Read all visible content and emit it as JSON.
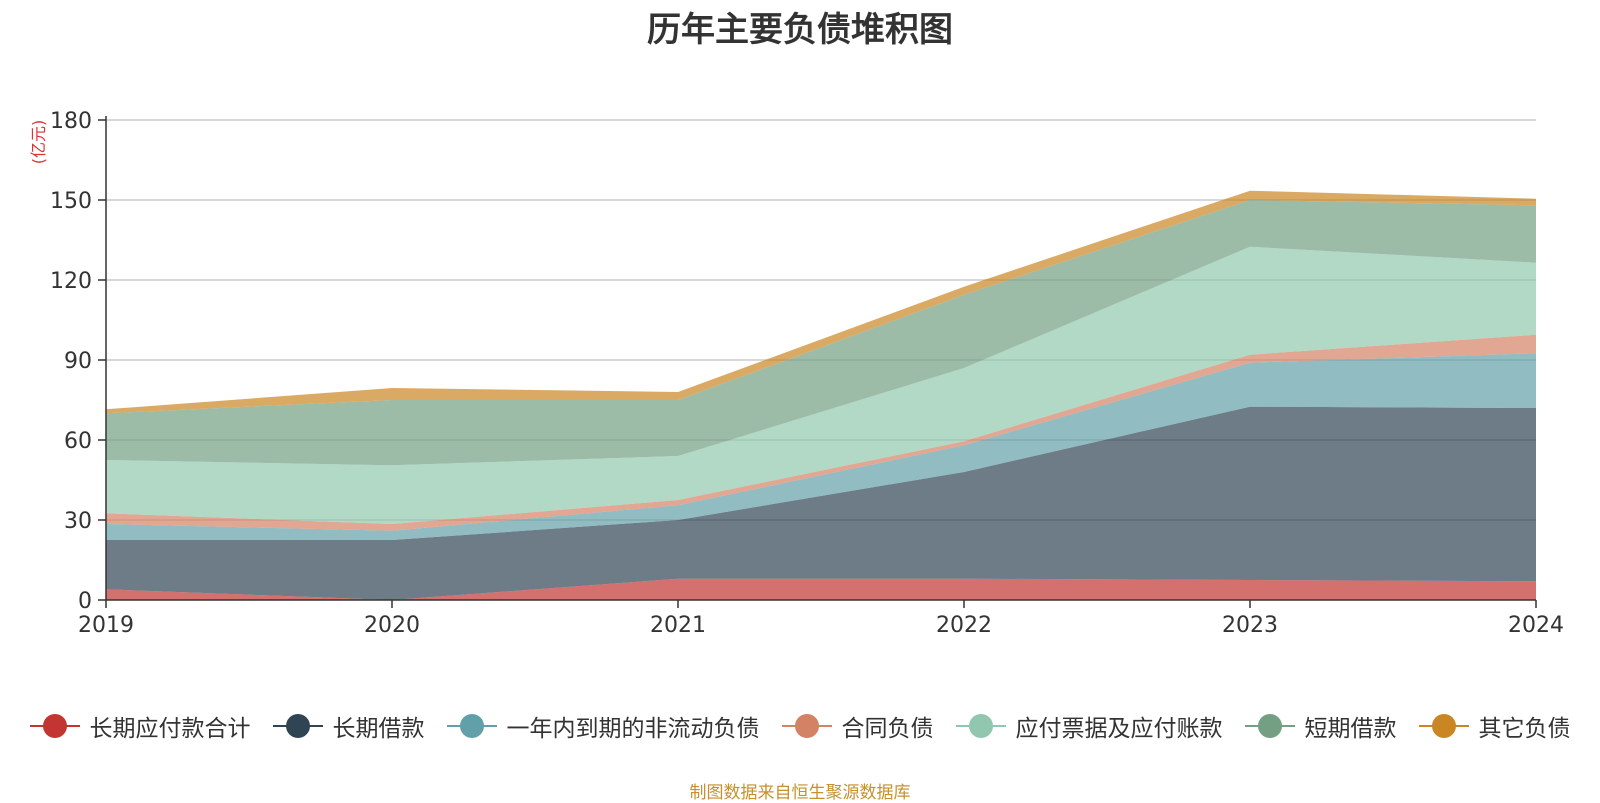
{
  "colors": {
    "title": "#333333",
    "unit": "#e03030",
    "source": "#c8902a",
    "grid": "#cccccc",
    "axis": "#333333"
  },
  "chart_data": {
    "type": "area",
    "stacked": true,
    "title": "历年主要负债堆积图",
    "ylabel": "(亿元)",
    "xlabel": "",
    "x": [
      "2019",
      "2020",
      "2021",
      "2022",
      "2023",
      "2024"
    ],
    "ylim": [
      0,
      180
    ],
    "yticks": [
      0,
      30,
      60,
      90,
      120,
      150,
      180
    ],
    "grid": true,
    "legend_position": "bottom",
    "series": [
      {
        "name": "长期应付款合计",
        "color": "#c23531",
        "values": [
          4,
          0,
          8,
          8,
          7.5,
          7
        ]
      },
      {
        "name": "长期借款",
        "color": "#2f4554",
        "values": [
          18.5,
          22.5,
          22,
          40,
          65,
          65
        ]
      },
      {
        "name": "一年内到期的非流动负债",
        "color": "#61a0a8",
        "values": [
          6,
          3.5,
          5.5,
          10,
          16.5,
          20.5
        ]
      },
      {
        "name": "合同负债",
        "color": "#d48265",
        "values": [
          4,
          2.5,
          2,
          1.5,
          3,
          7
        ]
      },
      {
        "name": "应付票据及应付账款",
        "color": "#91c7ae",
        "values": [
          20,
          22,
          16.5,
          27.5,
          40.5,
          27
        ]
      },
      {
        "name": "短期借款",
        "color": "#749f83",
        "values": [
          17.5,
          24.5,
          21,
          27.5,
          17.5,
          21.5
        ]
      },
      {
        "name": "其它负债",
        "color": "#ca8622",
        "values": [
          1.5,
          4.5,
          3,
          3,
          3.5,
          2.5
        ]
      }
    ]
  },
  "source_note": "制图数据来自恒生聚源数据库"
}
